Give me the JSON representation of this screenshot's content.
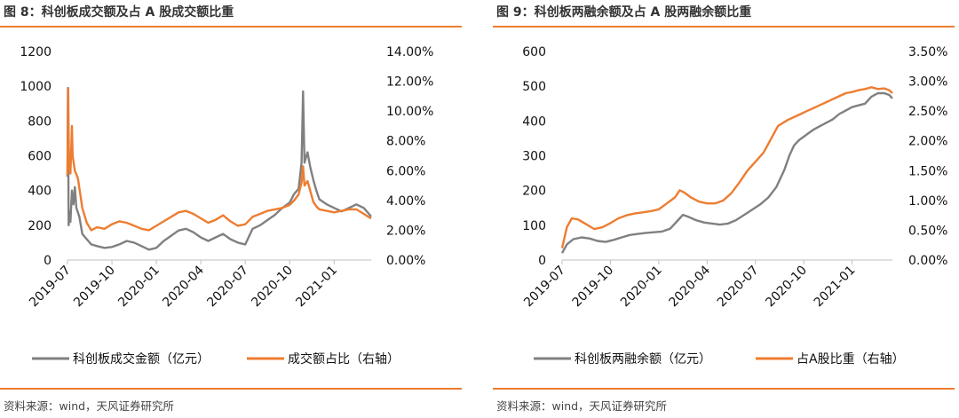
{
  "colors": {
    "accent": "#ED7D31",
    "gray": "#808080",
    "rule": "#ED7D31"
  },
  "left": {
    "title": "图 8：科创板成交额及占 A 股成交额比重",
    "source": "资料来源：wind，天风证券研究所",
    "chart_data": {
      "type": "line",
      "title": "科创板成交额及占 A 股成交额比重",
      "x_ticks": [
        "2019-07",
        "2019-10",
        "2020-01",
        "2020-04",
        "2020-07",
        "2020-10",
        "2021-01"
      ],
      "y_left": {
        "ticks": [
          "0",
          "200",
          "400",
          "600",
          "800",
          "1000",
          "1200"
        ],
        "min": 0,
        "max": 1200
      },
      "y_right": {
        "ticks": [
          "0.00%",
          "2.00%",
          "4.00%",
          "6.00%",
          "8.00%",
          "10.00%",
          "12.00%",
          "14.00%"
        ],
        "min": 0,
        "max": 14
      },
      "x_range": [
        0,
        20.5
      ],
      "series": [
        {
          "name": "科创板成交金额（亿元）",
          "axis": "left",
          "color": "#808080",
          "points": [
            [
              0,
              480
            ],
            [
              0.03,
              990
            ],
            [
              0.08,
              200
            ],
            [
              0.15,
              280
            ],
            [
              0.2,
              220
            ],
            [
              0.3,
              400
            ],
            [
              0.4,
              320
            ],
            [
              0.5,
              420
            ],
            [
              0.6,
              300
            ],
            [
              0.8,
              250
            ],
            [
              1.0,
              150
            ],
            [
              1.3,
              120
            ],
            [
              1.6,
              90
            ],
            [
              2.0,
              80
            ],
            [
              2.5,
              70
            ],
            [
              3.0,
              75
            ],
            [
              3.5,
              90
            ],
            [
              4.0,
              110
            ],
            [
              4.5,
              100
            ],
            [
              5.0,
              80
            ],
            [
              5.5,
              60
            ],
            [
              6.0,
              70
            ],
            [
              6.5,
              110
            ],
            [
              7.0,
              140
            ],
            [
              7.5,
              170
            ],
            [
              8.0,
              180
            ],
            [
              8.5,
              160
            ],
            [
              9.0,
              130
            ],
            [
              9.5,
              110
            ],
            [
              10.0,
              130
            ],
            [
              10.5,
              150
            ],
            [
              11.0,
              120
            ],
            [
              11.5,
              100
            ],
            [
              12.0,
              90
            ],
            [
              12.5,
              180
            ],
            [
              13.0,
              200
            ],
            [
              13.5,
              230
            ],
            [
              14.0,
              260
            ],
            [
              14.5,
              300
            ],
            [
              15.0,
              330
            ],
            [
              15.3,
              380
            ],
            [
              15.6,
              410
            ],
            [
              15.8,
              560
            ],
            [
              15.9,
              970
            ],
            [
              16.0,
              560
            ],
            [
              16.2,
              620
            ],
            [
              16.4,
              530
            ],
            [
              16.6,
              460
            ],
            [
              16.8,
              400
            ],
            [
              17.0,
              350
            ],
            [
              17.5,
              320
            ],
            [
              18.0,
              300
            ],
            [
              18.5,
              280
            ],
            [
              19.0,
              300
            ],
            [
              19.5,
              320
            ],
            [
              20.0,
              300
            ],
            [
              20.3,
              270
            ],
            [
              20.5,
              250
            ]
          ]
        },
        {
          "name": "成交额占比（右轴）",
          "axis": "right",
          "color": "#ED7D31",
          "points": [
            [
              0,
              5.7
            ],
            [
              0.05,
              11.5
            ],
            [
              0.1,
              6.5
            ],
            [
              0.2,
              5.8
            ],
            [
              0.3,
              9.0
            ],
            [
              0.35,
              7.0
            ],
            [
              0.5,
              6.0
            ],
            [
              0.7,
              5.5
            ],
            [
              1.0,
              3.5
            ],
            [
              1.3,
              2.5
            ],
            [
              1.6,
              2.0
            ],
            [
              2.0,
              2.2
            ],
            [
              2.5,
              2.1
            ],
            [
              3.0,
              2.4
            ],
            [
              3.5,
              2.6
            ],
            [
              4.0,
              2.5
            ],
            [
              4.5,
              2.3
            ],
            [
              5.0,
              2.1
            ],
            [
              5.5,
              2.0
            ],
            [
              6.0,
              2.3
            ],
            [
              6.5,
              2.6
            ],
            [
              7.0,
              2.9
            ],
            [
              7.5,
              3.2
            ],
            [
              8.0,
              3.3
            ],
            [
              8.5,
              3.1
            ],
            [
              9.0,
              2.8
            ],
            [
              9.5,
              2.5
            ],
            [
              10.0,
              2.7
            ],
            [
              10.5,
              3.0
            ],
            [
              11.0,
              2.6
            ],
            [
              11.5,
              2.3
            ],
            [
              12.0,
              2.4
            ],
            [
              12.5,
              2.9
            ],
            [
              13.0,
              3.1
            ],
            [
              13.5,
              3.3
            ],
            [
              14.0,
              3.4
            ],
            [
              14.5,
              3.5
            ],
            [
              15.0,
              3.7
            ],
            [
              15.3,
              4.0
            ],
            [
              15.6,
              4.4
            ],
            [
              15.8,
              5.2
            ],
            [
              15.9,
              6.3
            ],
            [
              16.0,
              5.0
            ],
            [
              16.2,
              5.3
            ],
            [
              16.4,
              4.6
            ],
            [
              16.6,
              3.9
            ],
            [
              16.8,
              3.6
            ],
            [
              17.0,
              3.4
            ],
            [
              17.5,
              3.3
            ],
            [
              18.0,
              3.2
            ],
            [
              18.5,
              3.3
            ],
            [
              19.0,
              3.4
            ],
            [
              19.5,
              3.4
            ],
            [
              20.0,
              3.1
            ],
            [
              20.3,
              2.9
            ],
            [
              20.5,
              2.8
            ]
          ]
        }
      ]
    },
    "legend": [
      "科创板成交金额（亿元）",
      "成交额占比（右轴）"
    ]
  },
  "right": {
    "title": "图 9：科创板两融余额及占 A 股两融余额比重",
    "source": "资料来源：wind，天风证券研究所",
    "chart_data": {
      "type": "line",
      "title": "科创板两融余额及占 A 股两融余额比重",
      "x_ticks": [
        "2019-07",
        "2019-10",
        "2020-01",
        "2020-04",
        "2020-07",
        "2020-10",
        "2021-01"
      ],
      "y_left": {
        "ticks": [
          "0",
          "100",
          "200",
          "300",
          "400",
          "500",
          "600"
        ],
        "min": 0,
        "max": 600
      },
      "y_right": {
        "ticks": [
          "0.00%",
          "0.50%",
          "1.00%",
          "1.50%",
          "2.00%",
          "2.50%",
          "3.00%",
          "3.50%"
        ],
        "min": 0,
        "max": 3.5
      },
      "x_range": [
        0,
        20.5
      ],
      "series": [
        {
          "name": "科创板两融余额（亿元）",
          "axis": "left",
          "color": "#808080",
          "points": [
            [
              0,
              20
            ],
            [
              0.3,
              45
            ],
            [
              0.7,
              60
            ],
            [
              1.2,
              65
            ],
            [
              1.7,
              62
            ],
            [
              2.2,
              55
            ],
            [
              2.7,
              52
            ],
            [
              3.2,
              58
            ],
            [
              3.7,
              65
            ],
            [
              4.2,
              72
            ],
            [
              4.7,
              75
            ],
            [
              5.2,
              78
            ],
            [
              5.7,
              80
            ],
            [
              6.2,
              82
            ],
            [
              6.7,
              90
            ],
            [
              7.2,
              115
            ],
            [
              7.5,
              130
            ],
            [
              7.8,
              125
            ],
            [
              8.3,
              115
            ],
            [
              8.8,
              108
            ],
            [
              9.3,
              105
            ],
            [
              9.8,
              102
            ],
            [
              10.3,
              105
            ],
            [
              10.8,
              115
            ],
            [
              11.3,
              130
            ],
            [
              11.8,
              145
            ],
            [
              12.3,
              160
            ],
            [
              12.8,
              180
            ],
            [
              13.3,
              210
            ],
            [
              13.8,
              260
            ],
            [
              14.1,
              300
            ],
            [
              14.4,
              330
            ],
            [
              14.7,
              345
            ],
            [
              15.0,
              355
            ],
            [
              15.3,
              365
            ],
            [
              15.6,
              375
            ],
            [
              16.0,
              385
            ],
            [
              16.4,
              395
            ],
            [
              16.8,
              405
            ],
            [
              17.2,
              420
            ],
            [
              17.6,
              430
            ],
            [
              18.0,
              440
            ],
            [
              18.4,
              445
            ],
            [
              18.8,
              450
            ],
            [
              19.2,
              470
            ],
            [
              19.6,
              480
            ],
            [
              20.0,
              480
            ],
            [
              20.3,
              475
            ],
            [
              20.5,
              465
            ]
          ]
        },
        {
          "name": "占A股比重（右轴）",
          "axis": "right",
          "color": "#ED7D31",
          "points": [
            [
              0,
              0.2
            ],
            [
              0.3,
              0.55
            ],
            [
              0.6,
              0.7
            ],
            [
              1.0,
              0.68
            ],
            [
              1.5,
              0.6
            ],
            [
              2.0,
              0.52
            ],
            [
              2.5,
              0.55
            ],
            [
              3.0,
              0.62
            ],
            [
              3.5,
              0.7
            ],
            [
              4.0,
              0.75
            ],
            [
              4.5,
              0.78
            ],
            [
              5.0,
              0.8
            ],
            [
              5.5,
              0.82
            ],
            [
              6.0,
              0.85
            ],
            [
              6.5,
              0.95
            ],
            [
              7.0,
              1.05
            ],
            [
              7.3,
              1.17
            ],
            [
              7.6,
              1.13
            ],
            [
              8.0,
              1.05
            ],
            [
              8.5,
              0.98
            ],
            [
              9.0,
              0.95
            ],
            [
              9.5,
              0.95
            ],
            [
              10.0,
              1.0
            ],
            [
              10.5,
              1.12
            ],
            [
              11.0,
              1.3
            ],
            [
              11.5,
              1.5
            ],
            [
              12.0,
              1.65
            ],
            [
              12.5,
              1.8
            ],
            [
              12.8,
              1.95
            ],
            [
              13.1,
              2.1
            ],
            [
              13.4,
              2.25
            ],
            [
              13.7,
              2.3
            ],
            [
              14.0,
              2.35
            ],
            [
              14.4,
              2.4
            ],
            [
              14.8,
              2.45
            ],
            [
              15.2,
              2.5
            ],
            [
              15.6,
              2.55
            ],
            [
              16.0,
              2.6
            ],
            [
              16.4,
              2.65
            ],
            [
              16.8,
              2.7
            ],
            [
              17.2,
              2.75
            ],
            [
              17.6,
              2.8
            ],
            [
              18.0,
              2.82
            ],
            [
              18.4,
              2.85
            ],
            [
              18.8,
              2.87
            ],
            [
              19.2,
              2.9
            ],
            [
              19.6,
              2.87
            ],
            [
              20.0,
              2.88
            ],
            [
              20.3,
              2.85
            ],
            [
              20.5,
              2.8
            ]
          ]
        }
      ]
    },
    "legend": [
      "科创板两融余额（亿元）",
      "占A股比重（右轴）"
    ]
  }
}
